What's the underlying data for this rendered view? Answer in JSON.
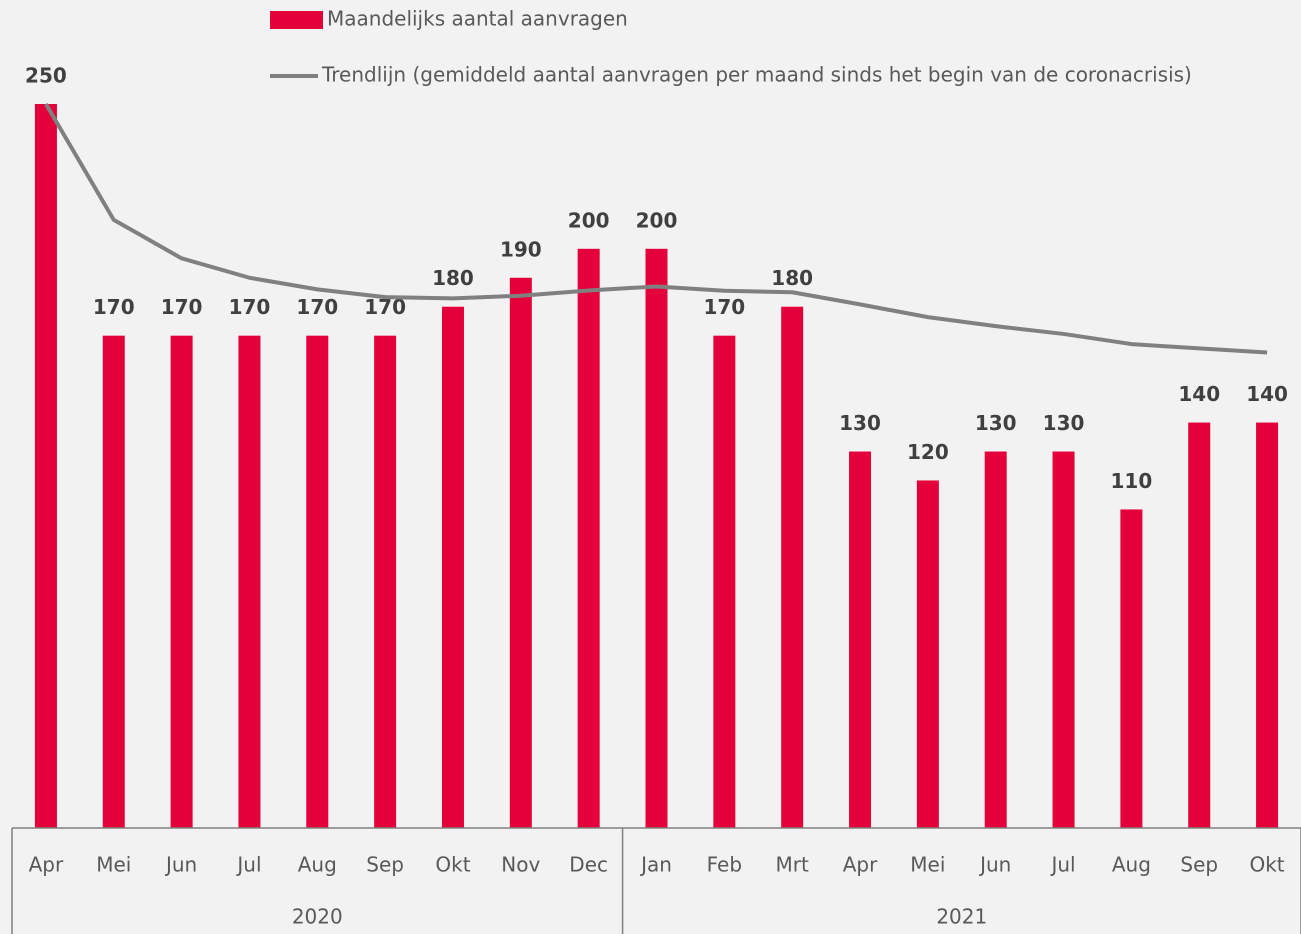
{
  "chart_data": {
    "type": "bar",
    "category_groups": [
      {
        "label": "2020",
        "categories": [
          "Apr",
          "Mei",
          "Jun",
          "Jul",
          "Aug",
          "Sep",
          "Okt",
          "Nov",
          "Dec"
        ]
      },
      {
        "label": "2021",
        "categories": [
          "Jan",
          "Feb",
          "Mrt",
          "Apr",
          "Mei",
          "Jun",
          "Jul",
          "Aug",
          "Sep",
          "Okt"
        ]
      }
    ],
    "series": [
      {
        "name": "Maandelijks aantal aanvragen",
        "type": "bar",
        "color": "#e4003a",
        "values": [
          250,
          170,
          170,
          170,
          170,
          170,
          180,
          190,
          200,
          200,
          170,
          180,
          130,
          120,
          130,
          130,
          110,
          140,
          140
        ]
      },
      {
        "name": "Trendlijn (gemiddeld aantal aanvragen per maand sinds het begin van de coronacrisis)",
        "type": "line",
        "color": "#808080",
        "values": [
          250,
          210,
          196.7,
          190,
          186,
          183.3,
          182.9,
          183.8,
          185.6,
          187,
          185.5,
          185,
          180.8,
          176.4,
          173.3,
          170.6,
          167.1,
          165.6,
          164.2
        ]
      }
    ],
    "ylim": [
      0,
      250
    ]
  }
}
